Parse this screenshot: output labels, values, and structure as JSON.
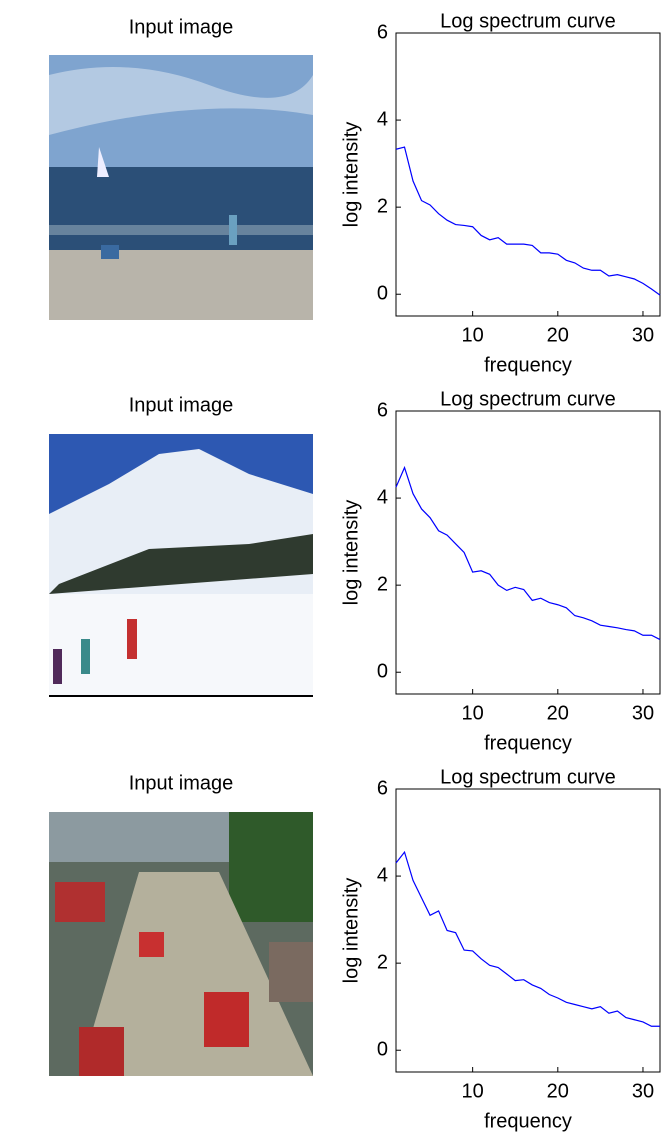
{
  "image_titles": [
    "Input image",
    "Input image",
    "Input image"
  ],
  "chart_data": [
    {
      "type": "line",
      "title": "Log spectrum curve",
      "xlabel": "frequency",
      "ylabel": "log intensity",
      "x": [
        1,
        2,
        3,
        4,
        5,
        6,
        7,
        8,
        9,
        10,
        11,
        12,
        13,
        14,
        15,
        16,
        17,
        18,
        19,
        20,
        21,
        22,
        23,
        24,
        25,
        26,
        27,
        28,
        29,
        30,
        31,
        32
      ],
      "series": [
        {
          "color": "#0000ff",
          "values": [
            3.33,
            3.38,
            2.6,
            2.15,
            2.05,
            1.85,
            1.7,
            1.6,
            1.58,
            1.55,
            1.35,
            1.25,
            1.3,
            1.15,
            1.15,
            1.15,
            1.12,
            0.95,
            0.95,
            0.92,
            0.78,
            0.72,
            0.6,
            0.55,
            0.55,
            0.42,
            0.45,
            0.4,
            0.35,
            0.25,
            0.12,
            -0.02
          ]
        }
      ],
      "xlim": [
        1,
        32
      ],
      "ylim": [
        -0.5,
        6
      ],
      "xticks": [
        10,
        20,
        30
      ],
      "yticks": [
        0,
        2,
        4,
        6
      ]
    },
    {
      "type": "line",
      "title": "Log spectrum curve",
      "xlabel": "frequency",
      "ylabel": "log intensity",
      "x": [
        1,
        2,
        3,
        4,
        5,
        6,
        7,
        8,
        9,
        10,
        11,
        12,
        13,
        14,
        15,
        16,
        17,
        18,
        19,
        20,
        21,
        22,
        23,
        24,
        25,
        26,
        27,
        28,
        29,
        30,
        31,
        32
      ],
      "series": [
        {
          "color": "#0000ff",
          "values": [
            4.25,
            4.7,
            4.1,
            3.75,
            3.55,
            3.25,
            3.15,
            2.95,
            2.75,
            2.3,
            2.33,
            2.25,
            2.0,
            1.88,
            1.95,
            1.9,
            1.65,
            1.7,
            1.6,
            1.55,
            1.48,
            1.3,
            1.25,
            1.18,
            1.08,
            1.05,
            1.02,
            0.98,
            0.95,
            0.85,
            0.85,
            0.75
          ]
        }
      ],
      "xlim": [
        1,
        32
      ],
      "ylim": [
        -0.5,
        6
      ],
      "xticks": [
        10,
        20,
        30
      ],
      "yticks": [
        0,
        2,
        4,
        6
      ]
    },
    {
      "type": "line",
      "title": "Log spectrum curve",
      "xlabel": "frequency",
      "ylabel": "log intensity",
      "x": [
        1,
        2,
        3,
        4,
        5,
        6,
        7,
        8,
        9,
        10,
        11,
        12,
        13,
        14,
        15,
        16,
        17,
        18,
        19,
        20,
        21,
        22,
        23,
        24,
        25,
        26,
        27,
        28,
        29,
        30,
        31,
        32
      ],
      "series": [
        {
          "color": "#0000ff",
          "values": [
            4.3,
            4.55,
            3.9,
            3.5,
            3.1,
            3.2,
            2.75,
            2.7,
            2.3,
            2.28,
            2.1,
            1.95,
            1.9,
            1.75,
            1.6,
            1.62,
            1.5,
            1.42,
            1.28,
            1.2,
            1.1,
            1.05,
            1.0,
            0.95,
            1.0,
            0.85,
            0.9,
            0.75,
            0.7,
            0.65,
            0.55,
            0.55
          ]
        }
      ],
      "xlim": [
        1,
        32
      ],
      "ylim": [
        -0.5,
        6
      ],
      "xticks": [
        10,
        20,
        30
      ],
      "yticks": [
        0,
        2,
        4,
        6
      ]
    }
  ]
}
